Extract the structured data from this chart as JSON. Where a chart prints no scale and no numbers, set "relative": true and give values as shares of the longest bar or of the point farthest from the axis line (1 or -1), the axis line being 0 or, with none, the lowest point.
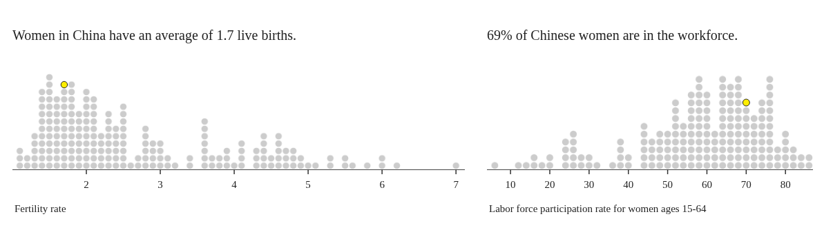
{
  "chart_data": [
    {
      "type": "bar",
      "title": "Women in China have an average of 1.7 live births.",
      "xlabel": "Fertility rate",
      "relative": true,
      "color": "#cccccc",
      "x": [
        1.1,
        1.2,
        1.3,
        1.4,
        1.5,
        1.6,
        1.7,
        1.8,
        1.9,
        2.0,
        2.1,
        2.2,
        2.3,
        2.4,
        2.5,
        2.6,
        2.7,
        2.8,
        2.9,
        3.0,
        3.1,
        3.2,
        3.3,
        3.4,
        3.5,
        3.6,
        3.7,
        3.8,
        3.9,
        4.0,
        4.1,
        4.2,
        4.3,
        4.4,
        4.5,
        4.6,
        4.7,
        4.8,
        4.9,
        5.0,
        5.1,
        5.2,
        5.3,
        5.4,
        5.5,
        5.6,
        5.7,
        5.8,
        5.9,
        6.0,
        6.1,
        6.2,
        6.3,
        6.4,
        6.5,
        6.6,
        6.7,
        6.8,
        6.9,
        7.0
      ],
      "values": [
        0.231,
        0.154,
        0.385,
        0.846,
        1,
        0.769,
        0.846,
        0.923,
        0.615,
        0.846,
        0.769,
        0.385,
        0.615,
        0.462,
        0.692,
        0.077,
        0.154,
        0.462,
        0.308,
        0.308,
        0.154,
        0.077,
        0,
        0.154,
        0,
        0.538,
        0.154,
        0.154,
        0.231,
        0.077,
        0.308,
        0,
        0.231,
        0.385,
        0.154,
        0.385,
        0.231,
        0.231,
        0.154,
        0.077,
        0.077,
        0,
        0.154,
        0,
        0.154,
        0.077,
        0,
        0.077,
        0,
        0.154,
        0,
        0.077,
        0,
        0,
        0,
        0,
        0,
        0,
        0,
        0.077
      ],
      "series": [
        {
          "type": "scatter",
          "x": [
            1.7
          ],
          "values": [
            0.885
          ],
          "color": "#ffee00"
        }
      ],
      "xlim": [
        1,
        7.12
      ],
      "xticks": [
        2,
        3,
        4,
        5,
        6,
        7
      ]
    },
    {
      "type": "bar",
      "title": "69% of Chinese women are in the workforce.",
      "xlabel": "Labor force participation rate for women ages 15-64",
      "relative": true,
      "color": "#cccccc",
      "x": [
        6,
        8,
        10,
        12,
        14,
        16,
        18,
        20,
        22,
        24,
        26,
        28,
        30,
        32,
        34,
        36,
        38,
        40,
        42,
        44,
        46,
        48,
        50,
        52,
        54,
        56,
        58,
        60,
        62,
        64,
        66,
        68,
        70,
        72,
        74,
        76,
        78,
        80,
        82,
        84,
        86
      ],
      "values": [
        0.083,
        0,
        0,
        0.083,
        0.083,
        0.167,
        0.083,
        0.167,
        0,
        0.333,
        0.417,
        0.167,
        0.167,
        0.083,
        0,
        0.083,
        0.333,
        0.167,
        0,
        0.5,
        0.333,
        0.417,
        0.417,
        0.75,
        0.5,
        0.833,
        1,
        0.833,
        0.417,
        1,
        0.917,
        1,
        0.667,
        0.583,
        0.75,
        1,
        0.25,
        0.417,
        0.25,
        0.167,
        0.167
      ],
      "series": [
        {
          "type": "scatter",
          "x": [
            70
          ],
          "values": [
            0.708
          ],
          "color": "#ffee00"
        }
      ],
      "xlim": [
        4,
        87
      ],
      "xticks": [
        10,
        20,
        30,
        40,
        50,
        60,
        70,
        80
      ]
    }
  ]
}
